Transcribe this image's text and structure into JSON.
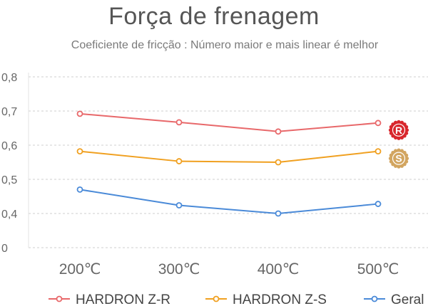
{
  "chart_data": {
    "type": "line",
    "title": "Força de frenagem",
    "subtitle": "Coeficiente de fricção : Número maior e mais linear é melhor",
    "categories": [
      "200℃",
      "300℃",
      "400℃",
      "500℃"
    ],
    "y_ticks": [
      {
        "value": 0,
        "label": "0"
      },
      {
        "value": 0.4,
        "label": "0,4"
      },
      {
        "value": 0.5,
        "label": "0,5"
      },
      {
        "value": 0.6,
        "label": "0,6"
      },
      {
        "value": 0.7,
        "label": "0,7"
      },
      {
        "value": 0.8,
        "label": "0,8"
      }
    ],
    "y_range": [
      0.3,
      0.8
    ],
    "y_axis_break": "bottom tick labeled 0",
    "grid": "horizontal dashed",
    "legend_position": "bottom",
    "series": [
      {
        "name": "HARDRON Z-R",
        "color": "#e8686a",
        "values": [
          0.692,
          0.667,
          0.64,
          0.665
        ],
        "badge": "R",
        "badge_color": "#d8262c"
      },
      {
        "name": "HARDRON Z-S",
        "color": "#f0a020",
        "values": [
          0.582,
          0.553,
          0.55,
          0.582
        ],
        "badge": "S",
        "badge_color": "#d2a560"
      },
      {
        "name": "Geral",
        "color": "#4a8ad8",
        "values": [
          0.47,
          0.424,
          0.4,
          0.428
        ]
      }
    ]
  }
}
